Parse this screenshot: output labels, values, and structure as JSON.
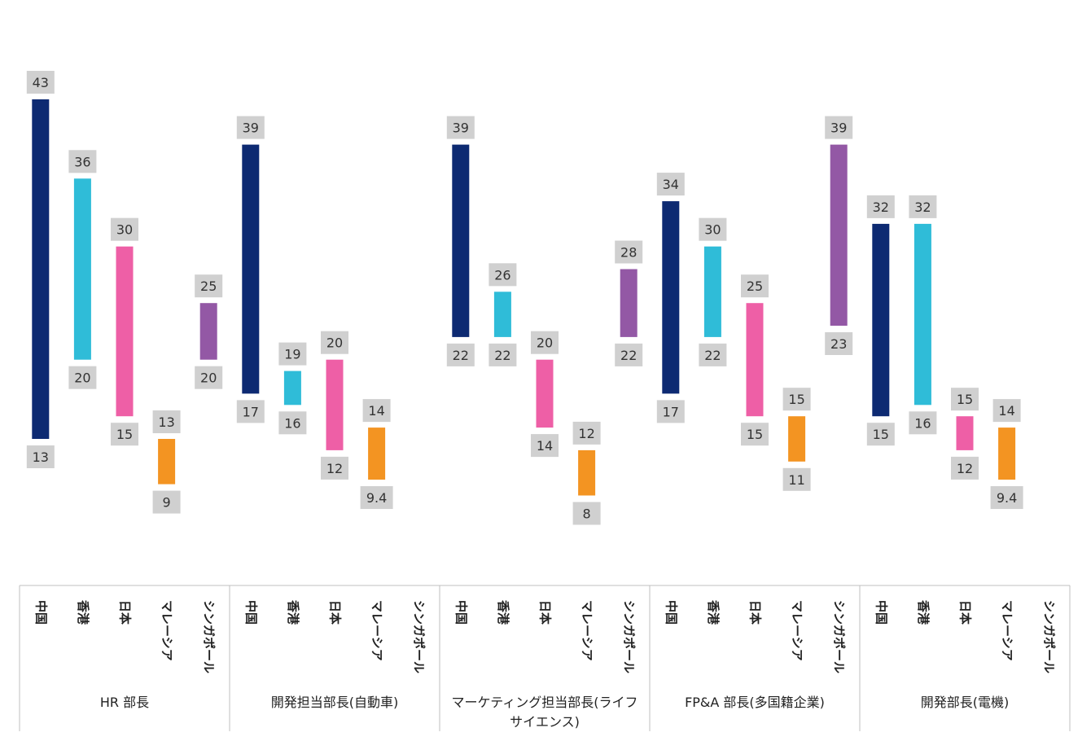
{
  "chart_data": {
    "type": "bar",
    "subtype": "floating-range",
    "title": "",
    "xlabel": "",
    "ylabel": "",
    "ylim": [
      5,
      47
    ],
    "series_names": [
      "中国",
      "香港",
      "日本",
      "マレーシア",
      "シンガポール"
    ],
    "colors": [
      "#0d2a72",
      "#2fbcd8",
      "#ee5fa6",
      "#f39422",
      "#9358a5"
    ],
    "groups": [
      {
        "name": "HR 部長",
        "ranges": [
          [
            13,
            43
          ],
          [
            20,
            36
          ],
          [
            15,
            30
          ],
          [
            9,
            13
          ],
          [
            20,
            25
          ]
        ],
        "low_labels": [
          "13",
          "20",
          "15",
          "9",
          "20"
        ],
        "high_labels": [
          "43",
          "36",
          "30",
          "13",
          "25"
        ]
      },
      {
        "name": "開発担当部長(自動車)",
        "ranges": [
          [
            17,
            39
          ],
          [
            16,
            19
          ],
          [
            12,
            20
          ],
          [
            9.4,
            14
          ],
          null
        ],
        "low_labels": [
          "17",
          "16",
          "12",
          "9.4",
          ""
        ],
        "high_labels": [
          "39",
          "19",
          "20",
          "14",
          ""
        ]
      },
      {
        "name": "マーケティング担当部長(ライフサイエンス)",
        "ranges": [
          [
            22,
            39
          ],
          [
            22,
            26
          ],
          [
            14,
            20
          ],
          [
            8,
            12
          ],
          [
            22,
            28
          ]
        ],
        "low_labels": [
          "22",
          "22",
          "14",
          "8",
          "22"
        ],
        "high_labels": [
          "39",
          "26",
          "20",
          "12",
          "28"
        ]
      },
      {
        "name": "FP&A 部長(多国籍企業)",
        "ranges": [
          [
            17,
            34
          ],
          [
            22,
            30
          ],
          [
            15,
            25
          ],
          [
            11,
            15
          ],
          [
            23,
            39
          ]
        ],
        "low_labels": [
          "17",
          "22",
          "15",
          "11",
          "23"
        ],
        "high_labels": [
          "34",
          "30",
          "25",
          "15",
          "39"
        ]
      },
      {
        "name": "開発部長(電機)",
        "ranges": [
          [
            15,
            32
          ],
          [
            16,
            32
          ],
          [
            12,
            15
          ],
          [
            9.4,
            14
          ],
          null
        ],
        "low_labels": [
          "15",
          "16",
          "12",
          "9.4",
          ""
        ],
        "high_labels": [
          "32",
          "32",
          "15",
          "14",
          ""
        ]
      }
    ]
  }
}
